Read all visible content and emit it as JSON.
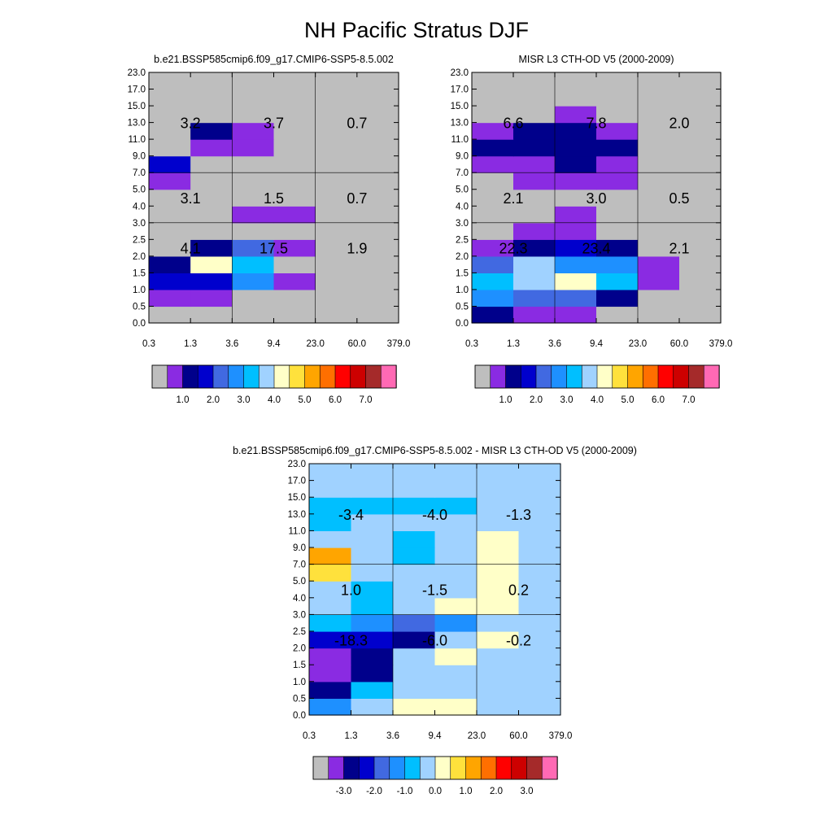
{
  "title": "NH Pacific Stratus DJF",
  "chart_data": [
    {
      "type": "heatmap",
      "title": "b.e21.BSSP585cmip6.f09_g17.CMIP6-SSP5-8.5.002",
      "x_ticks": [
        "0.3",
        "1.3",
        "3.6",
        "9.4",
        "23.0",
        "60.0",
        "379.0"
      ],
      "y_ticks": [
        "0.0",
        "0.5",
        "1.0",
        "1.5",
        "2.0",
        "2.5",
        "3.0",
        "4.0",
        "5.0",
        "7.0",
        "9.0",
        "11.0",
        "13.0",
        "15.0",
        "17.0",
        "23.0"
      ],
      "grid": true,
      "cells": [
        [
          0,
          0,
          0,
          0,
          0,
          0
        ],
        [
          1,
          1,
          0,
          0,
          0,
          0
        ],
        [
          3,
          3,
          5,
          1,
          0,
          0
        ],
        [
          2,
          8,
          6,
          0,
          0,
          0
        ],
        [
          0,
          2,
          4,
          1,
          0,
          0
        ],
        [
          0,
          0,
          0,
          0,
          0,
          0
        ],
        [
          0,
          0,
          1,
          1,
          0,
          0
        ],
        [
          0,
          0,
          0,
          0,
          0,
          0
        ],
        [
          1,
          0,
          0,
          0,
          0,
          0
        ],
        [
          3,
          0,
          0,
          0,
          0,
          0
        ],
        [
          0,
          1,
          1,
          0,
          0,
          0
        ],
        [
          0,
          2,
          1,
          0,
          0,
          0
        ],
        [
          0,
          0,
          0,
          0,
          0,
          0
        ],
        [
          0,
          0,
          0,
          0,
          0,
          0
        ],
        [
          0,
          0,
          0,
          0,
          0,
          0
        ]
      ],
      "totals": [
        {
          "label": "3.2",
          "col": 0,
          "row": 2
        },
        {
          "label": "3.7",
          "col": 1,
          "row": 2
        },
        {
          "label": "0.7",
          "col": 2,
          "row": 2
        },
        {
          "label": "3.1",
          "col": 0,
          "row": 1
        },
        {
          "label": "1.5",
          "col": 1,
          "row": 1
        },
        {
          "label": "0.7",
          "col": 2,
          "row": 1
        },
        {
          "label": "4.1",
          "col": 0,
          "row": 0
        },
        {
          "label": "17.5",
          "col": 1,
          "row": 0
        },
        {
          "label": "1.9",
          "col": 2,
          "row": 0
        }
      ],
      "colorbar": {
        "colors": [
          "#bebebe",
          "#8a2be2",
          "#00008b",
          "#0000cd",
          "#4169e1",
          "#1e90ff",
          "#00bfff",
          "#a0d2ff",
          "#ffffc8",
          "#ffe13c",
          "#ffa500",
          "#ff6f00",
          "#ff0000",
          "#cd0000",
          "#a52a2a",
          "#ff69b4"
        ],
        "labels": [
          "1.0",
          "2.0",
          "3.0",
          "4.0",
          "5.0",
          "6.0",
          "7.0"
        ]
      }
    },
    {
      "type": "heatmap",
      "title": "MISR L3 CTH-OD V5 (2000-2009)",
      "x_ticks": [
        "0.3",
        "1.3",
        "3.6",
        "9.4",
        "23.0",
        "60.0",
        "379.0"
      ],
      "y_ticks": [
        "0.0",
        "0.5",
        "1.0",
        "1.5",
        "2.0",
        "2.5",
        "3.0",
        "4.0",
        "5.0",
        "7.0",
        "9.0",
        "11.0",
        "13.0",
        "15.0",
        "17.0",
        "23.0"
      ],
      "grid": true,
      "cells": [
        [
          2,
          1,
          1,
          0,
          0,
          0
        ],
        [
          5,
          4,
          4,
          2,
          0,
          0
        ],
        [
          6,
          7,
          8,
          6,
          1,
          0
        ],
        [
          4,
          7,
          5,
          5,
          1,
          0
        ],
        [
          1,
          2,
          3,
          2,
          0,
          0
        ],
        [
          0,
          1,
          1,
          0,
          0,
          0
        ],
        [
          0,
          0,
          1,
          0,
          0,
          0
        ],
        [
          0,
          0,
          0,
          0,
          0,
          0
        ],
        [
          0,
          1,
          1,
          1,
          0,
          0
        ],
        [
          1,
          1,
          2,
          1,
          0,
          0
        ],
        [
          2,
          2,
          2,
          2,
          0,
          0
        ],
        [
          1,
          2,
          2,
          1,
          0,
          0
        ],
        [
          0,
          0,
          1,
          0,
          0,
          0
        ],
        [
          0,
          0,
          0,
          0,
          0,
          0
        ],
        [
          0,
          0,
          0,
          0,
          0,
          0
        ]
      ],
      "totals": [
        {
          "label": "6.6",
          "col": 0,
          "row": 2
        },
        {
          "label": "7.8",
          "col": 1,
          "row": 2
        },
        {
          "label": "2.0",
          "col": 2,
          "row": 2
        },
        {
          "label": "2.1",
          "col": 0,
          "row": 1
        },
        {
          "label": "3.0",
          "col": 1,
          "row": 1
        },
        {
          "label": "0.5",
          "col": 2,
          "row": 1
        },
        {
          "label": "22.3",
          "col": 0,
          "row": 0
        },
        {
          "label": "23.4",
          "col": 1,
          "row": 0
        },
        {
          "label": "2.1",
          "col": 2,
          "row": 0
        }
      ],
      "colorbar": {
        "colors": [
          "#bebebe",
          "#8a2be2",
          "#00008b",
          "#0000cd",
          "#4169e1",
          "#1e90ff",
          "#00bfff",
          "#a0d2ff",
          "#ffffc8",
          "#ffe13c",
          "#ffa500",
          "#ff6f00",
          "#ff0000",
          "#cd0000",
          "#a52a2a",
          "#ff69b4"
        ],
        "labels": [
          "1.0",
          "2.0",
          "3.0",
          "4.0",
          "5.0",
          "6.0",
          "7.0"
        ]
      }
    },
    {
      "type": "heatmap",
      "title": "b.e21.BSSP585cmip6.f09_g17.CMIP6-SSP5-8.5.002 - MISR L3 CTH-OD V5 (2000-2009)",
      "x_ticks": [
        "0.3",
        "1.3",
        "3.6",
        "9.4",
        "23.0",
        "60.0",
        "379.0"
      ],
      "y_ticks": [
        "0.0",
        "0.5",
        "1.0",
        "1.5",
        "2.0",
        "2.5",
        "3.0",
        "4.0",
        "5.0",
        "7.0",
        "9.0",
        "11.0",
        "13.0",
        "15.0",
        "17.0",
        "23.0"
      ],
      "grid": true,
      "cells": [
        [
          5,
          7,
          8,
          8,
          7,
          7
        ],
        [
          2,
          6,
          7,
          7,
          7,
          7
        ],
        [
          1,
          2,
          7,
          7,
          7,
          7
        ],
        [
          1,
          2,
          7,
          8,
          7,
          7
        ],
        [
          3,
          3,
          2,
          7,
          8,
          7
        ],
        [
          6,
          5,
          4,
          5,
          7,
          7
        ],
        [
          7,
          6,
          7,
          8,
          8,
          7
        ],
        [
          7,
          6,
          7,
          7,
          8,
          7
        ],
        [
          9,
          7,
          7,
          7,
          8,
          7
        ],
        [
          10,
          7,
          6,
          7,
          8,
          7
        ],
        [
          7,
          7,
          6,
          7,
          8,
          7
        ],
        [
          6,
          7,
          7,
          7,
          7,
          7
        ],
        [
          6,
          6,
          6,
          6,
          7,
          7
        ],
        [
          7,
          7,
          7,
          7,
          7,
          7
        ],
        [
          7,
          7,
          7,
          7,
          7,
          7
        ]
      ],
      "totals": [
        {
          "label": "-3.4",
          "col": 0,
          "row": 2
        },
        {
          "label": "-4.0",
          "col": 1,
          "row": 2
        },
        {
          "label": "-1.3",
          "col": 2,
          "row": 2
        },
        {
          "label": "1.0",
          "col": 0,
          "row": 1
        },
        {
          "label": "-1.5",
          "col": 1,
          "row": 1
        },
        {
          "label": "0.2",
          "col": 2,
          "row": 1
        },
        {
          "label": "-18.3",
          "col": 0,
          "row": 0
        },
        {
          "label": "-6.0",
          "col": 1,
          "row": 0
        },
        {
          "label": "-0.2",
          "col": 2,
          "row": 0
        }
      ],
      "colorbar": {
        "colors": [
          "#bebebe",
          "#8a2be2",
          "#00008b",
          "#0000cd",
          "#4169e1",
          "#1e90ff",
          "#00bfff",
          "#a0d2ff",
          "#ffffc8",
          "#ffe13c",
          "#ffa500",
          "#ff6f00",
          "#ff0000",
          "#cd0000",
          "#a52a2a",
          "#ff69b4"
        ],
        "labels": [
          "-3.0",
          "-2.0",
          "-1.0",
          "0.0",
          "1.0",
          "2.0",
          "3.0"
        ]
      }
    }
  ]
}
